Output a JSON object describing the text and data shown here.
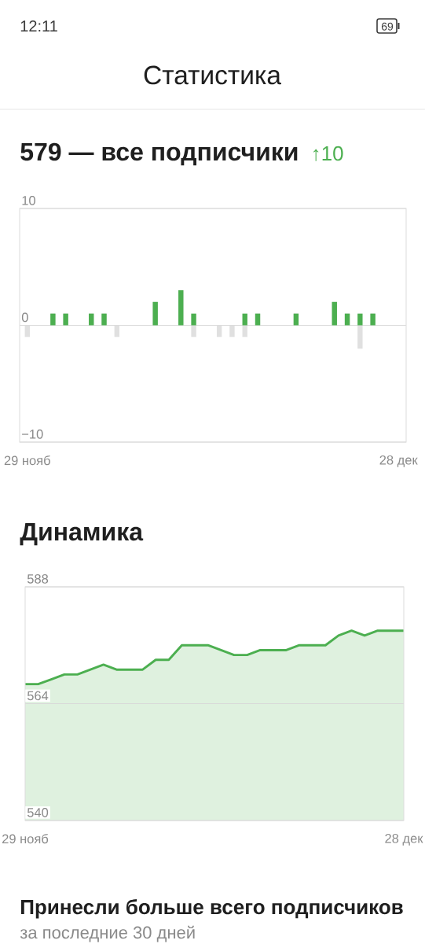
{
  "chart_data": [
    {
      "type": "bar",
      "title": "579 — все подписчики",
      "subtitle": "↑10",
      "annotations": [
        "12:11",
        "69",
        "Статистика"
      ],
      "categories": [
        "29 нояб",
        null,
        null,
        null,
        null,
        null,
        null,
        null,
        null,
        null,
        null,
        null,
        null,
        null,
        null,
        null,
        null,
        null,
        null,
        null,
        null,
        null,
        null,
        null,
        null,
        null,
        null,
        null,
        null,
        "28 дек"
      ],
      "series": [
        {
          "color": "#4caf50",
          "values": [
            0,
            0,
            1,
            1,
            0,
            1,
            1,
            0,
            0,
            0,
            2,
            0,
            3,
            1,
            0,
            0,
            0,
            1,
            1,
            0,
            0,
            1,
            0,
            0,
            2,
            1,
            1,
            1,
            0,
            0
          ]
        },
        {
          "color": "#e0e0e0",
          "values": [
            -1,
            0,
            0,
            0,
            0,
            0,
            0,
            -1,
            0,
            0,
            0,
            0,
            0,
            -1,
            0,
            -1,
            -1,
            -1,
            0,
            0,
            0,
            0,
            0,
            0,
            0,
            0,
            -2,
            0,
            0,
            0
          ]
        }
      ],
      "stacked": true,
      "ylim": [
        -10,
        10
      ],
      "yticks": [
        {
          "value": -10,
          "label": "−10"
        },
        0,
        10
      ],
      "grid": "y"
    },
    {
      "type": "area",
      "title": "Динамика",
      "annotations": [
        "Принесли больше всего подписчиков",
        "за последние 30 дней"
      ],
      "categories": [
        "29 нояб",
        null,
        null,
        null,
        null,
        null,
        null,
        null,
        null,
        null,
        null,
        null,
        null,
        null,
        null,
        null,
        null,
        null,
        null,
        null,
        null,
        null,
        null,
        null,
        null,
        null,
        null,
        null,
        null,
        "28 дек"
      ],
      "values": [
        568,
        568,
        569,
        570,
        570,
        571,
        572,
        571,
        571,
        571,
        573,
        573,
        576,
        576,
        576,
        575,
        574,
        574,
        575,
        575,
        575,
        576,
        576,
        576,
        578,
        579,
        578,
        579,
        579,
        579
      ],
      "color": "#4caf50",
      "ylim": [
        540,
        588
      ],
      "yticks": [
        540,
        564,
        588
      ],
      "grid": "y"
    }
  ]
}
